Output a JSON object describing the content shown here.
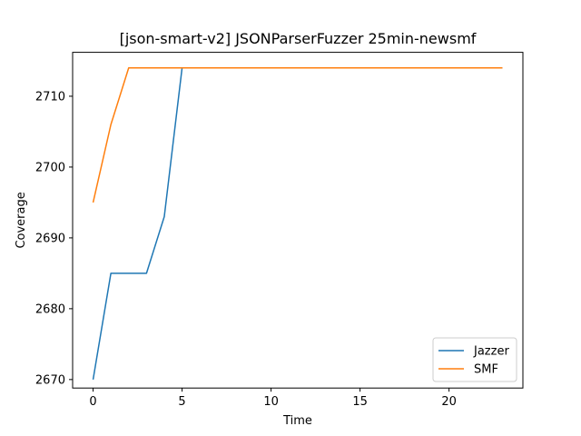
{
  "chart_data": {
    "type": "line",
    "title": "[json-smart-v2] JSONParserFuzzer 25min-newsmf",
    "xlabel": "Time",
    "ylabel": "Coverage",
    "xlim": [
      -1.15,
      24.15
    ],
    "ylim": [
      2668.8,
      2716.2
    ],
    "xticks": [
      0,
      5,
      10,
      15,
      20
    ],
    "yticks": [
      2670,
      2680,
      2690,
      2700,
      2710
    ],
    "grid": false,
    "legend_position": "lower-right",
    "series": [
      {
        "name": "Jazzer",
        "color": "#1f77b4",
        "x": [
          0,
          1,
          2,
          3,
          4,
          5,
          6,
          7,
          8,
          9,
          10,
          11,
          12,
          13,
          14,
          15,
          16,
          17,
          18,
          19,
          20,
          21,
          22,
          23
        ],
        "y": [
          2670,
          2685,
          2685,
          2685,
          2693,
          2714,
          2714,
          2714,
          2714,
          2714,
          2714,
          2714,
          2714,
          2714,
          2714,
          2714,
          2714,
          2714,
          2714,
          2714,
          2714,
          2714,
          2714,
          2714
        ]
      },
      {
        "name": "SMF",
        "color": "#ff7f0e",
        "x": [
          0,
          1,
          2,
          3,
          4,
          5,
          6,
          7,
          8,
          9,
          10,
          11,
          12,
          13,
          14,
          15,
          16,
          17,
          18,
          19,
          20,
          21,
          22,
          23
        ],
        "y": [
          2695,
          2706,
          2714,
          2714,
          2714,
          2714,
          2714,
          2714,
          2714,
          2714,
          2714,
          2714,
          2714,
          2714,
          2714,
          2714,
          2714,
          2714,
          2714,
          2714,
          2714,
          2714,
          2714,
          2714
        ]
      }
    ]
  }
}
